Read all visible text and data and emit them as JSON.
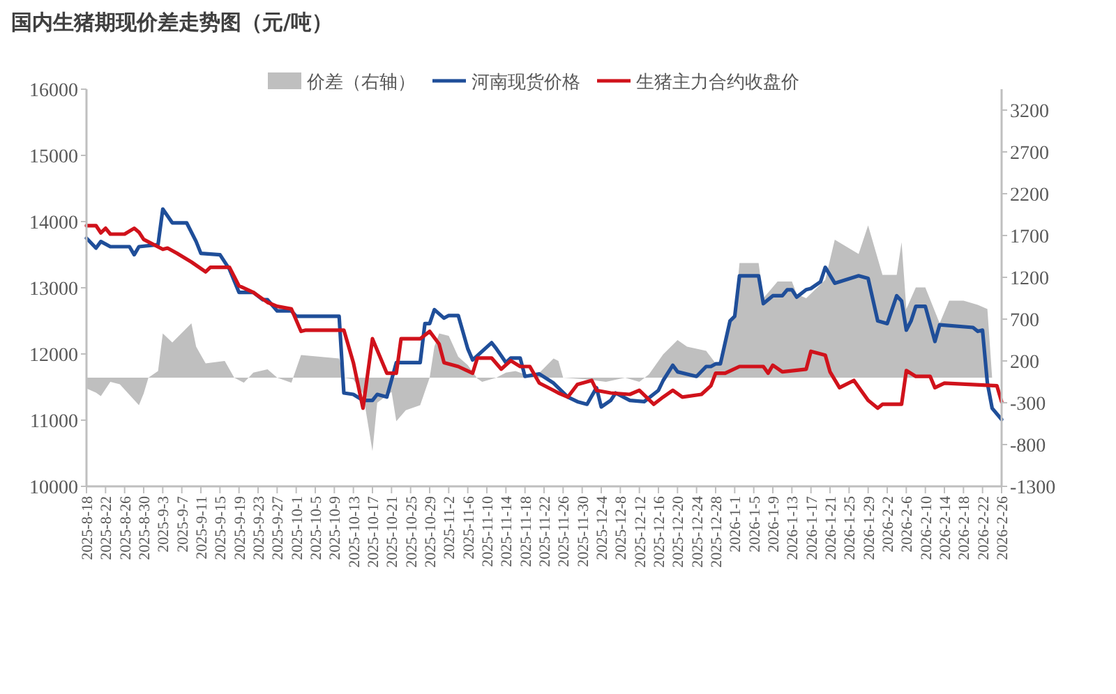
{
  "chart_data": {
    "type": "line",
    "title": "国内生猪期现价差走势图（元/吨）",
    "legend": "top",
    "xlim": [
      "2025-08-18",
      "2026-02-26"
    ],
    "ylim": [
      10000,
      16000
    ],
    "yticks": [
      10000,
      11000,
      12000,
      13000,
      14000,
      15000,
      16000
    ],
    "y2lim": [
      -1300,
      3450
    ],
    "y2ticks": [
      -1300,
      -800,
      -300,
      200,
      700,
      1200,
      1700,
      2200,
      2700,
      3200
    ],
    "xticks": [
      {
        "value": "2025-08-18",
        "label": "2025-8-18"
      },
      {
        "value": "2025-08-22",
        "label": "2025-8-22"
      },
      {
        "value": "2025-08-26",
        "label": "2025-8-26"
      },
      {
        "value": "2025-08-30",
        "label": "2025-8-30"
      },
      {
        "value": "2025-09-03",
        "label": "2025-9-3"
      },
      {
        "value": "2025-09-07",
        "label": "2025-9-7"
      },
      {
        "value": "2025-09-11",
        "label": "2025-9-11"
      },
      {
        "value": "2025-09-15",
        "label": "2025-9-15"
      },
      {
        "value": "2025-09-19",
        "label": "2025-9-19"
      },
      {
        "value": "2025-09-23",
        "label": "2025-9-23"
      },
      {
        "value": "2025-09-27",
        "label": "2025-9-27"
      },
      {
        "value": "2025-10-01",
        "label": "2025-10-1"
      },
      {
        "value": "2025-10-05",
        "label": "2025-10-5"
      },
      {
        "value": "2025-10-09",
        "label": "2025-10-9"
      },
      {
        "value": "2025-10-13",
        "label": "2025-10-13"
      },
      {
        "value": "2025-10-17",
        "label": "2025-10-17"
      },
      {
        "value": "2025-10-21",
        "label": "2025-10-21"
      },
      {
        "value": "2025-10-25",
        "label": "2025-10-25"
      },
      {
        "value": "2025-10-29",
        "label": "2025-10-29"
      },
      {
        "value": "2025-11-02",
        "label": "2025-11-2"
      },
      {
        "value": "2025-11-06",
        "label": "2025-11-6"
      },
      {
        "value": "2025-11-10",
        "label": "2025-11-10"
      },
      {
        "value": "2025-11-14",
        "label": "2025-11-14"
      },
      {
        "value": "2025-11-18",
        "label": "2025-11-18"
      },
      {
        "value": "2025-11-22",
        "label": "2025-11-22"
      },
      {
        "value": "2025-11-26",
        "label": "2025-11-26"
      },
      {
        "value": "2025-11-30",
        "label": "2025-11-30"
      },
      {
        "value": "2025-12-04",
        "label": "2025-12-4"
      },
      {
        "value": "2025-12-08",
        "label": "2025-12-8"
      },
      {
        "value": "2025-12-12",
        "label": "2025-12-12"
      },
      {
        "value": "2025-12-16",
        "label": "2025-12-16"
      },
      {
        "value": "2025-12-20",
        "label": "2025-12-20"
      },
      {
        "value": "2025-12-24",
        "label": "2025-12-24"
      },
      {
        "value": "2025-12-28",
        "label": "2025-12-28"
      },
      {
        "value": "2026-01-01",
        "label": "2026-1-1"
      },
      {
        "value": "2026-01-05",
        "label": "2026-1-5"
      },
      {
        "value": "2026-01-09",
        "label": "2026-1-9"
      },
      {
        "value": "2026-01-13",
        "label": "2026-1-13"
      },
      {
        "value": "2026-01-17",
        "label": "2026-1-17"
      },
      {
        "value": "2026-01-21",
        "label": "2026-1-21"
      },
      {
        "value": "2026-01-25",
        "label": "2026-1-25"
      },
      {
        "value": "2026-01-29",
        "label": "2026-1-29"
      },
      {
        "value": "2026-02-02",
        "label": "2026-2-2"
      },
      {
        "value": "2026-02-06",
        "label": "2026-2-6"
      },
      {
        "value": "2026-02-10",
        "label": "2026-2-10"
      },
      {
        "value": "2026-02-14",
        "label": "2026-2-14"
      },
      {
        "value": "2026-02-18",
        "label": "2026-2-18"
      },
      {
        "value": "2026-02-22",
        "label": "2026-2-22"
      },
      {
        "value": "2026-02-26",
        "label": "2026-2-26"
      }
    ],
    "series": [
      {
        "name": "价差（右轴）",
        "type": "area",
        "axis": "y2",
        "color": "#bfbfbf",
        "x": [
          "2025-08-18",
          "2025-08-20",
          "2025-08-21",
          "2025-08-23",
          "2025-08-25",
          "2025-08-29",
          "2025-08-30",
          "2025-08-31",
          "2025-09-02",
          "2025-09-03",
          "2025-09-05",
          "2025-09-09",
          "2025-09-10",
          "2025-09-12",
          "2025-09-16",
          "2025-09-18",
          "2025-09-20",
          "2025-09-22",
          "2025-09-25",
          "2025-09-27",
          "2025-09-30",
          "2025-10-02",
          "2025-10-10",
          "2025-10-11",
          "2025-10-13",
          "2025-10-15",
          "2025-10-17",
          "2025-10-18",
          "2025-10-21",
          "2025-10-22",
          "2025-10-24",
          "2025-10-27",
          "2025-10-29",
          "2025-10-30",
          "2025-10-31",
          "2025-11-02",
          "2025-11-04",
          "2025-11-06",
          "2025-11-08",
          "2025-11-09",
          "2025-11-12",
          "2025-11-14",
          "2025-11-16",
          "2025-11-20",
          "2025-11-24",
          "2025-11-25",
          "2025-11-26",
          "2025-12-01",
          "2025-12-05",
          "2025-12-09",
          "2025-12-12",
          "2025-12-14",
          "2025-12-17",
          "2025-12-20",
          "2025-12-22",
          "2025-12-26",
          "2025-12-28",
          "2025-12-29",
          "2025-12-31",
          "2026-01-01",
          "2026-01-02",
          "2026-01-06",
          "2026-01-07",
          "2026-01-10",
          "2026-01-13",
          "2026-01-14",
          "2026-01-16",
          "2026-01-20",
          "2026-01-22",
          "2026-01-27",
          "2026-01-29",
          "2026-02-01",
          "2026-02-04",
          "2026-02-05",
          "2026-02-06",
          "2026-02-08",
          "2026-02-10",
          "2026-02-13",
          "2026-02-15",
          "2026-02-18",
          "2026-02-21",
          "2026-02-23",
          "2026-02-24"
        ],
        "values": [
          -130,
          -180,
          -220,
          -50,
          -80,
          -330,
          -190,
          0,
          80,
          530,
          420,
          650,
          370,
          170,
          200,
          0,
          -60,
          60,
          100,
          0,
          -60,
          270,
          230,
          0,
          -20,
          -190,
          -880,
          -300,
          -170,
          -520,
          -390,
          -330,
          0,
          370,
          530,
          500,
          250,
          150,
          -10,
          -50,
          0,
          60,
          80,
          0,
          230,
          200,
          0,
          -20,
          -50,
          0,
          -50,
          40,
          280,
          450,
          370,
          320,
          170,
          200,
          650,
          730,
          1370,
          1370,
          950,
          1150,
          1150,
          1000,
          950,
          1170,
          1650,
          1480,
          1820,
          1230,
          1230,
          1620,
          820,
          1080,
          1080,
          650,
          920,
          920,
          870,
          820,
          0
        ]
      },
      {
        "name": "河南现货价格",
        "color": "#1f4e99",
        "x": [
          "2025-08-18",
          "2025-08-20",
          "2025-08-21",
          "2025-08-23",
          "2025-08-27",
          "2025-08-28",
          "2025-08-29",
          "2025-09-02",
          "2025-09-03",
          "2025-09-05",
          "2025-09-08",
          "2025-09-10",
          "2025-09-11",
          "2025-09-15",
          "2025-09-17",
          "2025-09-19",
          "2025-09-22",
          "2025-09-24",
          "2025-09-25",
          "2025-09-27",
          "2025-09-30",
          "2025-10-01",
          "2025-10-10",
          "2025-10-11",
          "2025-10-13",
          "2025-10-15",
          "2025-10-17",
          "2025-10-18",
          "2025-10-20",
          "2025-10-22",
          "2025-10-27",
          "2025-10-28",
          "2025-10-29",
          "2025-10-30",
          "2025-11-01",
          "2025-11-02",
          "2025-11-04",
          "2025-11-06",
          "2025-11-07",
          "2025-11-11",
          "2025-11-12",
          "2025-11-14",
          "2025-11-15",
          "2025-11-17",
          "2025-11-18",
          "2025-11-21",
          "2025-11-24",
          "2025-11-27",
          "2025-11-29",
          "2025-12-01",
          "2025-12-03",
          "2025-12-04",
          "2025-12-06",
          "2025-12-07",
          "2025-12-10",
          "2025-12-13",
          "2025-12-16",
          "2025-12-17",
          "2025-12-19",
          "2025-12-20",
          "2025-12-24",
          "2025-12-26",
          "2025-12-27",
          "2025-12-28",
          "2025-12-29",
          "2025-12-31",
          "2026-01-01",
          "2026-01-02",
          "2026-01-06",
          "2026-01-07",
          "2026-01-09",
          "2026-01-11",
          "2026-01-12",
          "2026-01-13",
          "2026-01-14",
          "2026-01-16",
          "2026-01-17",
          "2026-01-19",
          "2026-01-20",
          "2026-01-22",
          "2026-01-27",
          "2026-01-29",
          "2026-01-31",
          "2026-02-02",
          "2026-02-04",
          "2026-02-05",
          "2026-02-06",
          "2026-02-07",
          "2026-02-08",
          "2026-02-10",
          "2026-02-12",
          "2026-02-13",
          "2026-02-20",
          "2026-02-21",
          "2026-02-22",
          "2026-02-23",
          "2026-02-24",
          "2026-02-26"
        ],
        "values": [
          13750,
          13600,
          13700,
          13620,
          13620,
          13500,
          13620,
          13650,
          14190,
          13980,
          13980,
          13700,
          13520,
          13500,
          13280,
          12930,
          12930,
          12820,
          12820,
          12650,
          12650,
          12570,
          12570,
          11410,
          11390,
          11300,
          11300,
          11390,
          11350,
          11870,
          11870,
          12460,
          12460,
          12670,
          12540,
          12580,
          12580,
          12080,
          11910,
          12170,
          12080,
          11870,
          11940,
          11940,
          11660,
          11700,
          11560,
          11350,
          11280,
          11240,
          11490,
          11200,
          11300,
          11410,
          11300,
          11280,
          11450,
          11600,
          11830,
          11730,
          11660,
          11810,
          11810,
          11850,
          11850,
          12500,
          12570,
          13180,
          13180,
          12760,
          12880,
          12880,
          12970,
          12970,
          12860,
          12970,
          12990,
          13090,
          13310,
          13070,
          13180,
          13140,
          12500,
          12460,
          12880,
          12800,
          12360,
          12500,
          12720,
          12720,
          12190,
          12440,
          12400,
          12340,
          12360,
          11560,
          11180,
          11010
        ]
      },
      {
        "name": "生猪主力合约收盘价",
        "color": "#d0121b",
        "x": [
          "2025-08-18",
          "2025-08-20",
          "2025-08-21",
          "2025-08-22",
          "2025-08-23",
          "2025-08-26",
          "2025-08-28",
          "2025-08-29",
          "2025-08-30",
          "2025-09-03",
          "2025-09-04",
          "2025-09-06",
          "2025-09-09",
          "2025-09-12",
          "2025-09-13",
          "2025-09-17",
          "2025-09-19",
          "2025-09-22",
          "2025-09-25",
          "2025-09-27",
          "2025-09-30",
          "2025-10-02",
          "2025-10-03",
          "2025-10-11",
          "2025-10-13",
          "2025-10-15",
          "2025-10-17",
          "2025-10-20",
          "2025-10-22",
          "2025-10-23",
          "2025-10-27",
          "2025-10-29",
          "2025-10-31",
          "2025-11-01",
          "2025-11-04",
          "2025-11-07",
          "2025-11-08",
          "2025-11-11",
          "2025-11-13",
          "2025-11-15",
          "2025-11-17",
          "2025-11-19",
          "2025-11-21",
          "2025-11-24",
          "2025-11-25",
          "2025-11-27",
          "2025-11-29",
          "2025-12-02",
          "2025-12-03",
          "2025-12-06",
          "2025-12-10",
          "2025-12-12",
          "2025-12-15",
          "2025-12-17",
          "2025-12-19",
          "2025-12-21",
          "2025-12-25",
          "2025-12-27",
          "2025-12-28",
          "2025-12-30",
          "2026-01-02",
          "2026-01-07",
          "2026-01-08",
          "2026-01-09",
          "2026-01-11",
          "2026-01-16",
          "2026-01-17",
          "2026-01-20",
          "2026-01-21",
          "2026-01-23",
          "2026-01-26",
          "2026-01-29",
          "2026-01-31",
          "2026-02-01",
          "2026-02-05",
          "2026-02-06",
          "2026-02-08",
          "2026-02-11",
          "2026-02-12",
          "2026-02-14",
          "2026-02-25",
          "2026-02-26"
        ],
        "values": [
          13940,
          13940,
          13830,
          13900,
          13810,
          13810,
          13900,
          13840,
          13730,
          13580,
          13600,
          13520,
          13390,
          13240,
          13310,
          13310,
          13030,
          12930,
          12780,
          12720,
          12680,
          12340,
          12360,
          12360,
          11870,
          11180,
          12230,
          11710,
          11710,
          12230,
          12230,
          12340,
          12150,
          11870,
          11810,
          11710,
          11940,
          11940,
          11770,
          11900,
          11810,
          11810,
          11560,
          11450,
          11410,
          11350,
          11540,
          11600,
          11450,
          11410,
          11390,
          11450,
          11240,
          11350,
          11450,
          11350,
          11390,
          11520,
          11710,
          11710,
          11810,
          11810,
          11710,
          11830,
          11730,
          11770,
          12040,
          11980,
          11730,
          11490,
          11600,
          11300,
          11180,
          11240,
          11240,
          11750,
          11660,
          11660,
          11490,
          11560,
          11520,
          11280
        ]
      }
    ]
  }
}
